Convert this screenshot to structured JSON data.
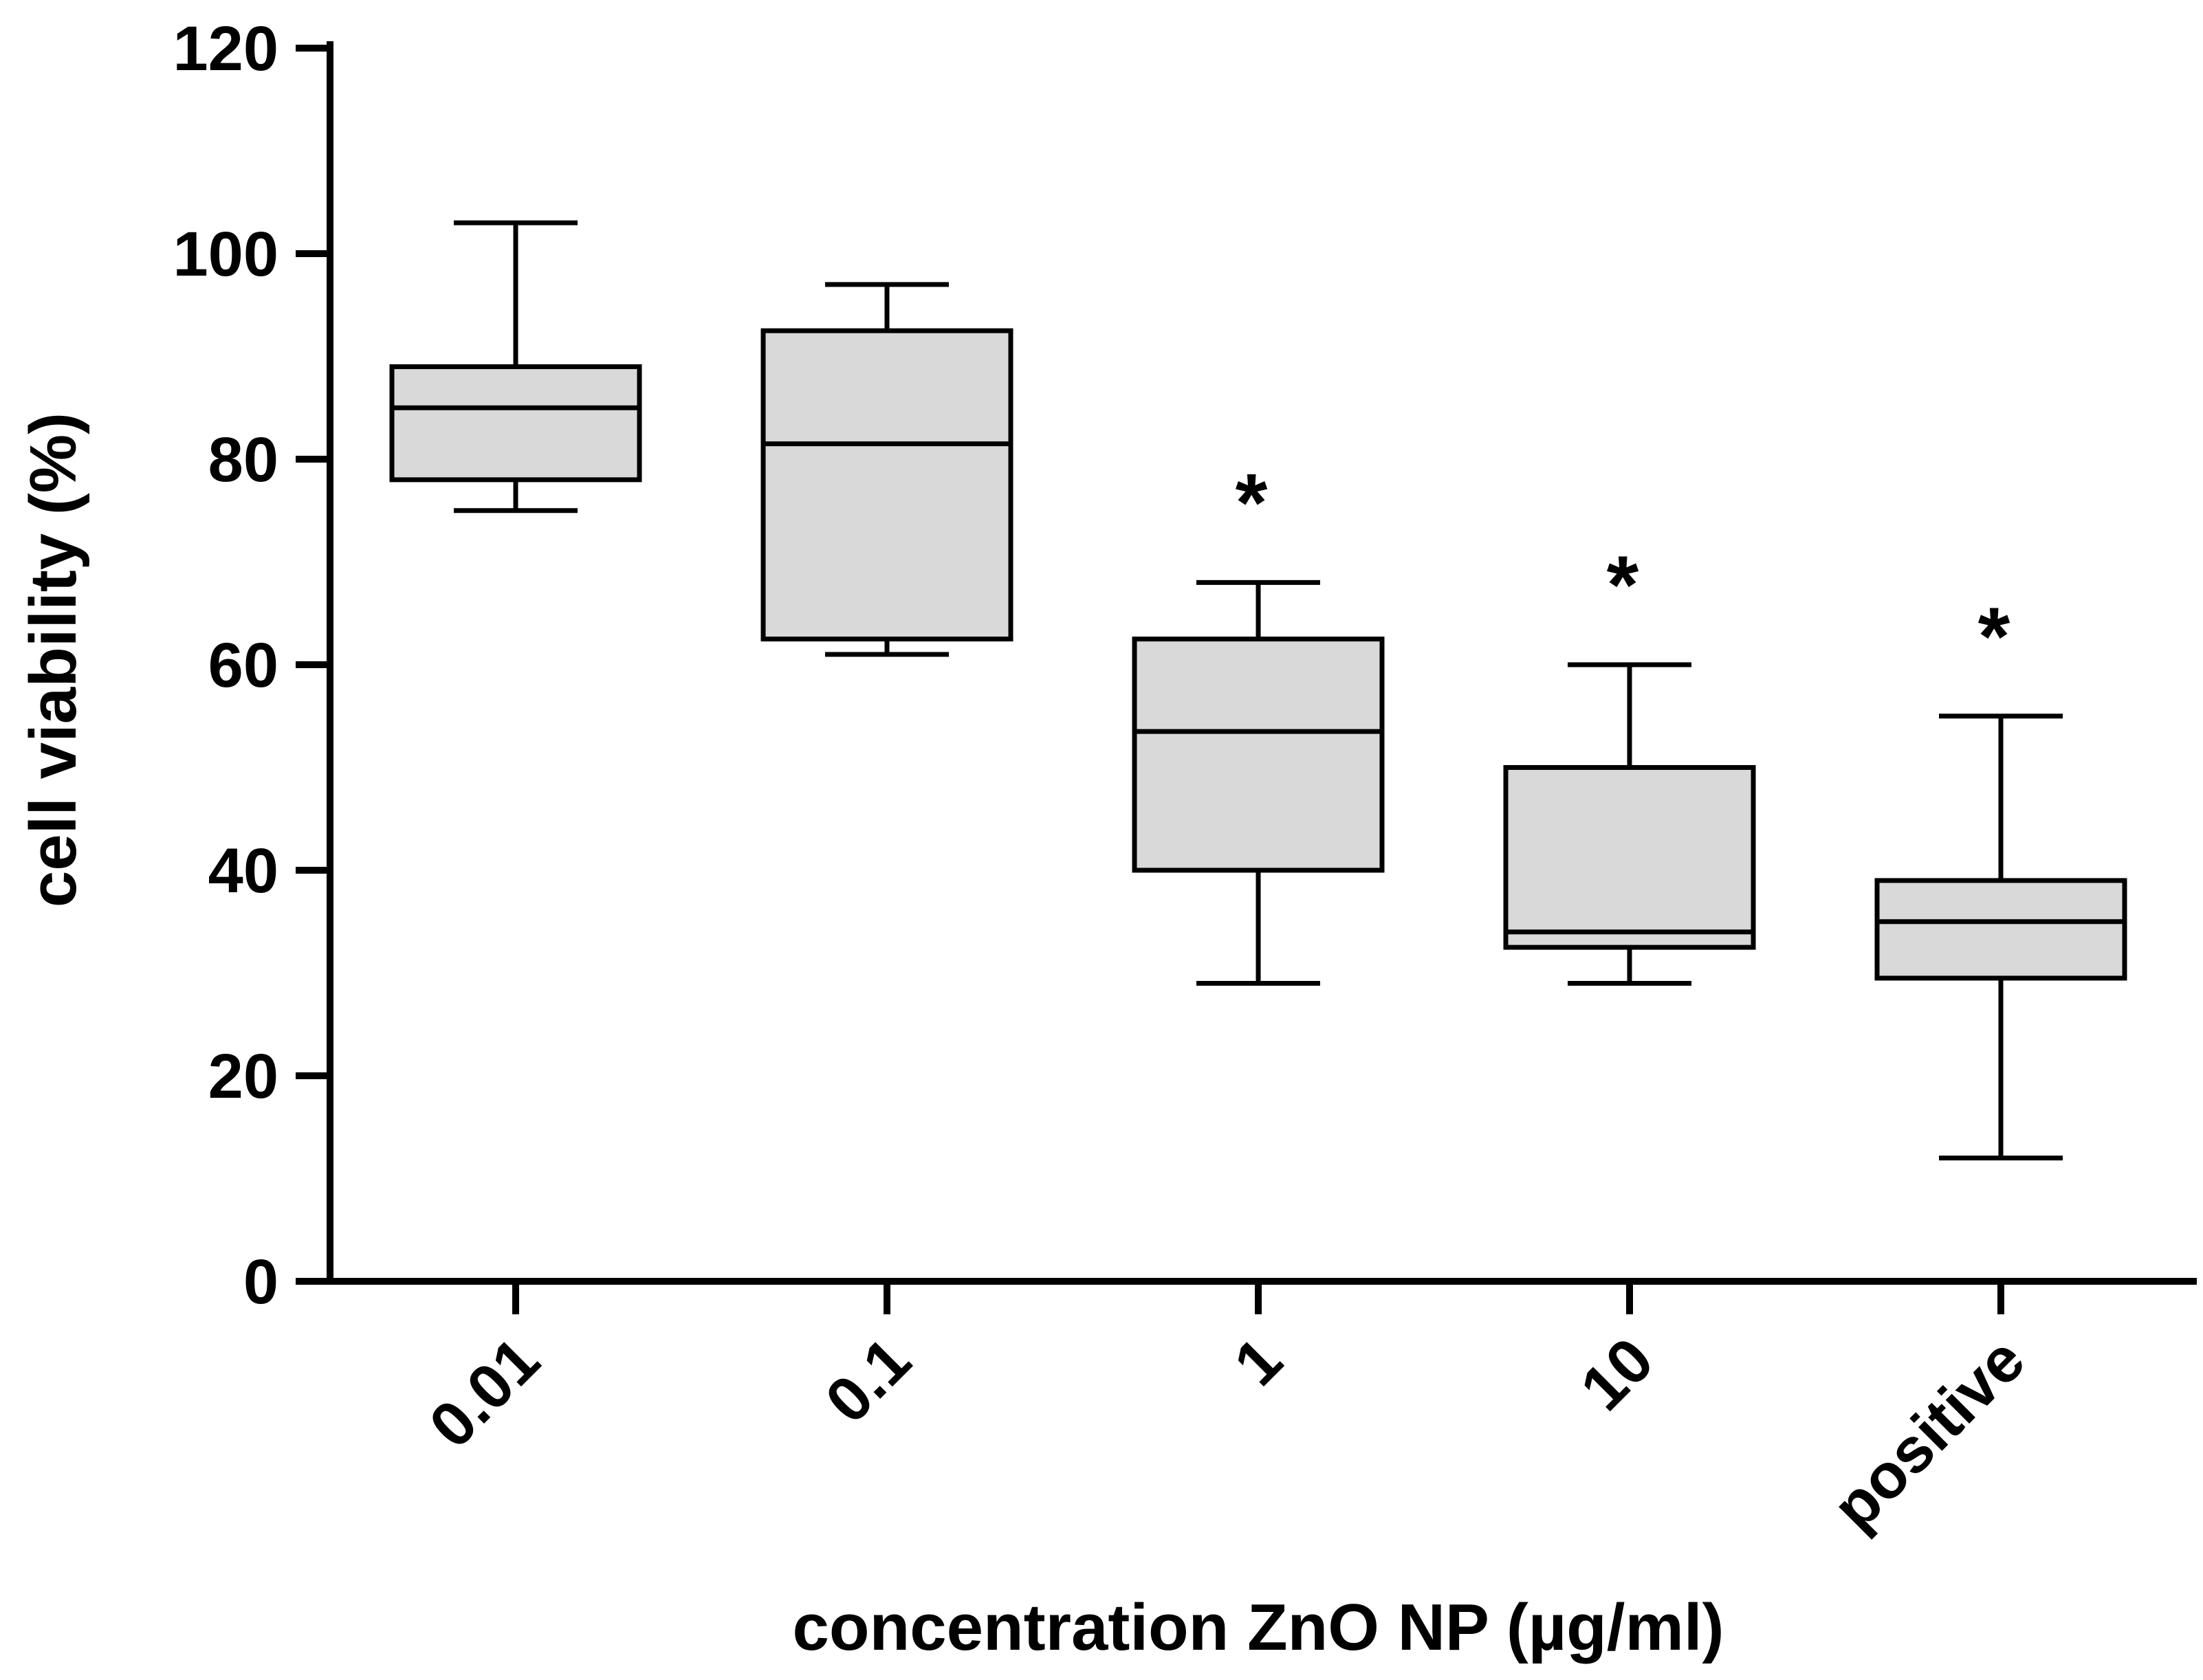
{
  "chart_data": {
    "type": "box",
    "title": "",
    "xlabel": "concentration ZnO NP (µg/ml)",
    "ylabel": "cell viability (%)",
    "ylim": [
      0,
      120
    ],
    "yticks": [
      "0",
      "20",
      "40",
      "60",
      "80",
      "100",
      "120"
    ],
    "categories": [
      "0.01",
      "0.1",
      "1",
      "10",
      "positive"
    ],
    "boxes": [
      {
        "category": "0.01",
        "whisker_low": 75,
        "q1": 78,
        "median": 85,
        "q3": 89,
        "whisker_high": 103,
        "annotation": ""
      },
      {
        "category": "0.1",
        "whisker_low": 61,
        "q1": 62.5,
        "median": 81.5,
        "q3": 92.5,
        "whisker_high": 97,
        "annotation": ""
      },
      {
        "category": "1",
        "whisker_low": 29,
        "q1": 40,
        "median": 53.5,
        "q3": 62.5,
        "whisker_high": 68,
        "annotation": "*"
      },
      {
        "category": "10",
        "whisker_low": 29,
        "q1": 32.5,
        "median": 34,
        "q3": 50,
        "whisker_high": 60,
        "annotation": "*"
      },
      {
        "category": "positive",
        "whisker_low": 12,
        "q1": 29.5,
        "median": 35,
        "q3": 39,
        "whisker_high": 55,
        "annotation": "*"
      }
    ],
    "box_fill": "#d9d9d9",
    "line_color": "#000000"
  }
}
